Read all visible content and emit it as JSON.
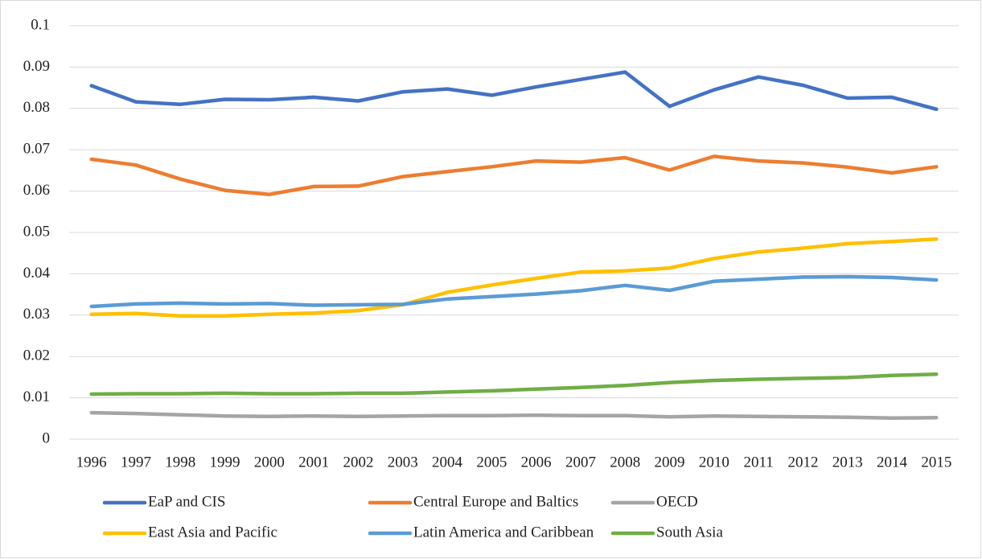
{
  "chart_data": {
    "type": "line",
    "categories": [
      "1996",
      "1997",
      "1998",
      "1999",
      "2000",
      "2001",
      "2002",
      "2003",
      "2004",
      "2005",
      "2006",
      "2007",
      "2008",
      "2009",
      "2010",
      "2011",
      "2012",
      "2013",
      "2014",
      "2015"
    ],
    "ylim": [
      0,
      0.1
    ],
    "yticks": [
      0,
      0.01,
      0.02,
      0.03,
      0.04,
      0.05,
      0.06,
      0.07,
      0.08,
      0.09,
      0.1
    ],
    "grid": true,
    "legend": "bottom",
    "series": [
      {
        "name": "EaP and CIS",
        "color": "#4472c4",
        "values": [
          0.0855,
          0.0816,
          0.081,
          0.0822,
          0.0821,
          0.0827,
          0.0818,
          0.084,
          0.0847,
          0.0832,
          0.0852,
          0.087,
          0.0888,
          0.0805,
          0.0845,
          0.0876,
          0.0856,
          0.0825,
          0.0827,
          0.0798
        ]
      },
      {
        "name": "Central Europe and Baltics",
        "color": "#ed7d31",
        "values": [
          0.0677,
          0.0663,
          0.0629,
          0.0602,
          0.0592,
          0.0611,
          0.0612,
          0.0635,
          0.0647,
          0.0659,
          0.0673,
          0.067,
          0.0681,
          0.0651,
          0.0684,
          0.0673,
          0.0668,
          0.0658,
          0.0644,
          0.0659
        ]
      },
      {
        "name": "OECD",
        "color": "#a5a5a5",
        "values": [
          0.0064,
          0.0062,
          0.0059,
          0.0056,
          0.0055,
          0.0056,
          0.0055,
          0.0056,
          0.0057,
          0.0057,
          0.0058,
          0.0057,
          0.0057,
          0.0054,
          0.0056,
          0.0055,
          0.0054,
          0.0053,
          0.0051,
          0.0052
        ]
      },
      {
        "name": "East Asia and Pacific",
        "color": "#ffc000",
        "values": [
          0.0302,
          0.0304,
          0.0298,
          0.0298,
          0.0302,
          0.0305,
          0.0311,
          0.0325,
          0.0355,
          0.0373,
          0.0389,
          0.0404,
          0.0407,
          0.0414,
          0.0437,
          0.0453,
          0.0462,
          0.0473,
          0.0478,
          0.0484
        ]
      },
      {
        "name": "Latin America and Caribbean",
        "color": "#5b9bd5",
        "values": [
          0.0321,
          0.0327,
          0.0329,
          0.0327,
          0.0328,
          0.0324,
          0.0325,
          0.0326,
          0.0339,
          0.0345,
          0.0351,
          0.0359,
          0.0372,
          0.036,
          0.0382,
          0.0387,
          0.0392,
          0.0393,
          0.0391,
          0.0385
        ]
      },
      {
        "name": "South Asia",
        "color": "#70ad47",
        "values": [
          0.0109,
          0.011,
          0.011,
          0.0111,
          0.011,
          0.011,
          0.0111,
          0.0111,
          0.0114,
          0.0117,
          0.0121,
          0.0125,
          0.013,
          0.0137,
          0.0142,
          0.0145,
          0.0147,
          0.0149,
          0.0154,
          0.0157
        ]
      }
    ]
  }
}
